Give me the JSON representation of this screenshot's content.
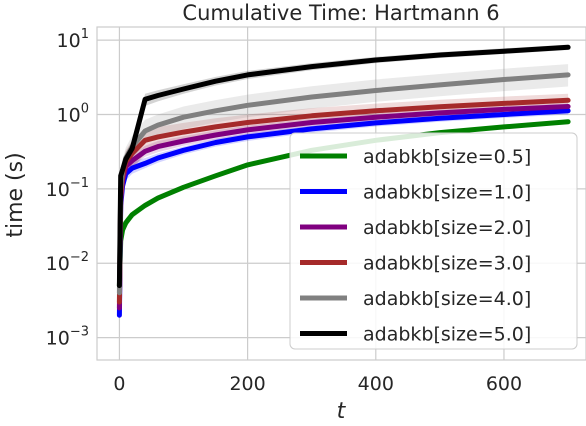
{
  "chart_data": {
    "type": "line",
    "title": "Cumulative Time: Hartmann 6",
    "xlabel": "t",
    "ylabel": "time (s)",
    "xlim": [
      -35,
      728
    ],
    "ylim": [
      0.0005,
      15
    ],
    "yscale": "log",
    "grid": true,
    "legend_position": "lower-right",
    "x_ticks": [
      {
        "value": 0,
        "label": "0"
      },
      {
        "value": 200,
        "label": "200"
      },
      {
        "value": 400,
        "label": "400"
      },
      {
        "value": 600,
        "label": "600"
      }
    ],
    "y_ticks": [
      {
        "value": 0.001,
        "base": "10",
        "exp": "−3"
      },
      {
        "value": 0.01,
        "base": "10",
        "exp": "−2"
      },
      {
        "value": 0.1,
        "base": "10",
        "exp": "−1"
      },
      {
        "value": 1,
        "base": "10",
        "exp": "0"
      },
      {
        "value": 10,
        "base": "10",
        "exp": "1"
      }
    ],
    "series": [
      {
        "name": "adabkb[size=0.5]",
        "color": "#008000",
        "x": [
          0,
          2,
          5,
          10,
          20,
          40,
          60,
          100,
          150,
          200,
          300,
          400,
          500,
          600,
          700
        ],
        "y": [
          0.005,
          0.02,
          0.028,
          0.035,
          0.045,
          0.06,
          0.075,
          0.105,
          0.15,
          0.21,
          0.33,
          0.45,
          0.57,
          0.68,
          0.8
        ],
        "band_lo": [
          0.004,
          0.017,
          0.024,
          0.03,
          0.04,
          0.055,
          0.069,
          0.098,
          0.14,
          0.197,
          0.31,
          0.425,
          0.54,
          0.645,
          0.76
        ],
        "band_hi": [
          0.006,
          0.023,
          0.032,
          0.04,
          0.05,
          0.066,
          0.081,
          0.112,
          0.16,
          0.225,
          0.35,
          0.475,
          0.6,
          0.715,
          0.84
        ]
      },
      {
        "name": "adabkb[size=1.0]",
        "color": "#0000ff",
        "x": [
          0,
          2,
          5,
          10,
          20,
          40,
          60,
          100,
          150,
          200,
          300,
          400,
          500,
          600,
          700
        ],
        "y": [
          0.002,
          0.06,
          0.11,
          0.16,
          0.19,
          0.22,
          0.26,
          0.33,
          0.42,
          0.5,
          0.64,
          0.77,
          0.89,
          1.0,
          1.12
        ],
        "band_lo": [
          0.0016,
          0.045,
          0.085,
          0.13,
          0.16,
          0.19,
          0.225,
          0.29,
          0.37,
          0.44,
          0.57,
          0.69,
          0.8,
          0.9,
          1.0
        ],
        "band_hi": [
          0.0025,
          0.08,
          0.14,
          0.2,
          0.23,
          0.26,
          0.3,
          0.37,
          0.47,
          0.56,
          0.71,
          0.85,
          0.98,
          1.1,
          1.24
        ]
      },
      {
        "name": "adabkb[size=2.0]",
        "color": "#800080",
        "x": [
          0,
          2,
          5,
          10,
          20,
          40,
          60,
          100,
          150,
          200,
          300,
          400,
          500,
          600,
          700
        ],
        "y": [
          0.0025,
          0.07,
          0.13,
          0.2,
          0.24,
          0.32,
          0.37,
          0.44,
          0.53,
          0.62,
          0.78,
          0.92,
          1.05,
          1.17,
          1.28
        ],
        "band_lo": [
          0.002,
          0.05,
          0.1,
          0.16,
          0.2,
          0.27,
          0.31,
          0.38,
          0.46,
          0.54,
          0.69,
          0.82,
          0.94,
          1.05,
          1.15
        ],
        "band_hi": [
          0.003,
          0.09,
          0.17,
          0.25,
          0.29,
          0.38,
          0.44,
          0.51,
          0.61,
          0.71,
          0.88,
          1.03,
          1.17,
          1.3,
          1.42
        ]
      },
      {
        "name": "adabkb[size=3.0]",
        "color": "#a52a2a",
        "x": [
          0,
          2,
          5,
          10,
          20,
          40,
          60,
          100,
          150,
          200,
          300,
          400,
          500,
          600,
          700
        ],
        "y": [
          0.003,
          0.08,
          0.15,
          0.23,
          0.3,
          0.45,
          0.5,
          0.58,
          0.68,
          0.78,
          0.96,
          1.12,
          1.27,
          1.41,
          1.55
        ],
        "band_lo": [
          0.0022,
          0.055,
          0.1,
          0.14,
          0.18,
          0.3,
          0.35,
          0.42,
          0.5,
          0.58,
          0.73,
          0.86,
          0.98,
          1.1,
          1.22
        ],
        "band_hi": [
          0.004,
          0.12,
          0.22,
          0.33,
          0.45,
          0.62,
          0.68,
          0.77,
          0.89,
          1.0,
          1.22,
          1.4,
          1.58,
          1.74,
          1.9
        ]
      },
      {
        "name": "adabkb[size=4.0]",
        "color": "#808080",
        "x": [
          0,
          2,
          5,
          10,
          20,
          40,
          60,
          100,
          150,
          200,
          300,
          400,
          500,
          600,
          700
        ],
        "y": [
          0.004,
          0.1,
          0.18,
          0.26,
          0.37,
          0.6,
          0.72,
          0.92,
          1.12,
          1.33,
          1.72,
          2.1,
          2.5,
          2.95,
          3.4
        ],
        "band_lo": [
          0.003,
          0.07,
          0.12,
          0.18,
          0.26,
          0.42,
          0.5,
          0.64,
          0.78,
          0.92,
          1.2,
          1.48,
          1.76,
          2.06,
          2.38
        ],
        "band_hi": [
          0.005,
          0.14,
          0.25,
          0.36,
          0.52,
          0.85,
          1.0,
          1.28,
          1.56,
          1.85,
          2.4,
          2.95,
          3.5,
          4.12,
          4.75
        ]
      },
      {
        "name": "adabkb[size=5.0]",
        "color": "#000000",
        "x": [
          0,
          2,
          5,
          10,
          20,
          30,
          40,
          60,
          100,
          150,
          200,
          300,
          400,
          500,
          600,
          700
        ],
        "y": [
          0.005,
          0.15,
          0.18,
          0.25,
          0.35,
          0.75,
          1.6,
          1.8,
          2.2,
          2.8,
          3.4,
          4.4,
          5.4,
          6.3,
          7.1,
          8.0
        ],
        "band_lo": [
          0.004,
          0.12,
          0.14,
          0.2,
          0.28,
          0.6,
          1.3,
          1.5,
          1.9,
          2.45,
          3.0,
          3.95,
          4.9,
          5.75,
          6.5,
          7.35
        ],
        "band_hi": [
          0.006,
          0.19,
          0.22,
          0.31,
          0.43,
          0.92,
          1.9,
          2.12,
          2.55,
          3.2,
          3.85,
          4.9,
          5.95,
          6.9,
          7.75,
          8.7
        ]
      }
    ]
  }
}
